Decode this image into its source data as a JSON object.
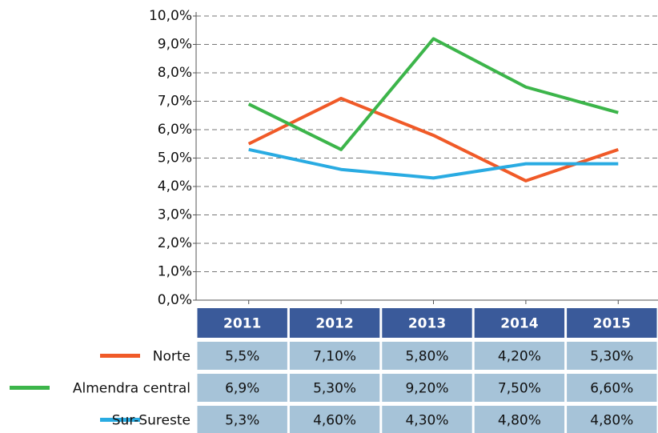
{
  "chart_data": {
    "type": "line",
    "categories": [
      "2011",
      "2012",
      "2013",
      "2014",
      "2015"
    ],
    "series": [
      {
        "name": "Norte",
        "color": "#f05a28",
        "values": [
          5.5,
          7.1,
          5.8,
          4.2,
          5.3
        ],
        "value_labels": [
          "5,5%",
          "7,10%",
          "5,80%",
          "4,20%",
          "5,30%"
        ]
      },
      {
        "name": "Almendra central",
        "color": "#3cb54a",
        "values": [
          6.9,
          5.3,
          9.2,
          7.5,
          6.6
        ],
        "value_labels": [
          "6,9%",
          "5,30%",
          "9,20%",
          "7,50%",
          "6,60%"
        ]
      },
      {
        "name": "Sur-Sureste",
        "color": "#29abe2",
        "values": [
          5.3,
          4.6,
          4.3,
          4.8,
          4.8
        ],
        "value_labels": [
          "5,3%",
          "4,60%",
          "4,30%",
          "4,80%",
          "4,80%"
        ]
      }
    ],
    "ylim": [
      0,
      10
    ],
    "yticks": [
      {
        "value": 0,
        "label": "0,0%"
      },
      {
        "value": 1,
        "label": "1,0%"
      },
      {
        "value": 2,
        "label": "2,0%"
      },
      {
        "value": 3,
        "label": "3,0%"
      },
      {
        "value": 4,
        "label": "4,0%"
      },
      {
        "value": 5,
        "label": "5,0%"
      },
      {
        "value": 6,
        "label": "6,0%"
      },
      {
        "value": 7,
        "label": "7,0%"
      },
      {
        "value": 8,
        "label": "8,0%"
      },
      {
        "value": 9,
        "label": "9,0%"
      },
      {
        "value": 10,
        "label": "10,0%"
      }
    ],
    "grid": true
  }
}
